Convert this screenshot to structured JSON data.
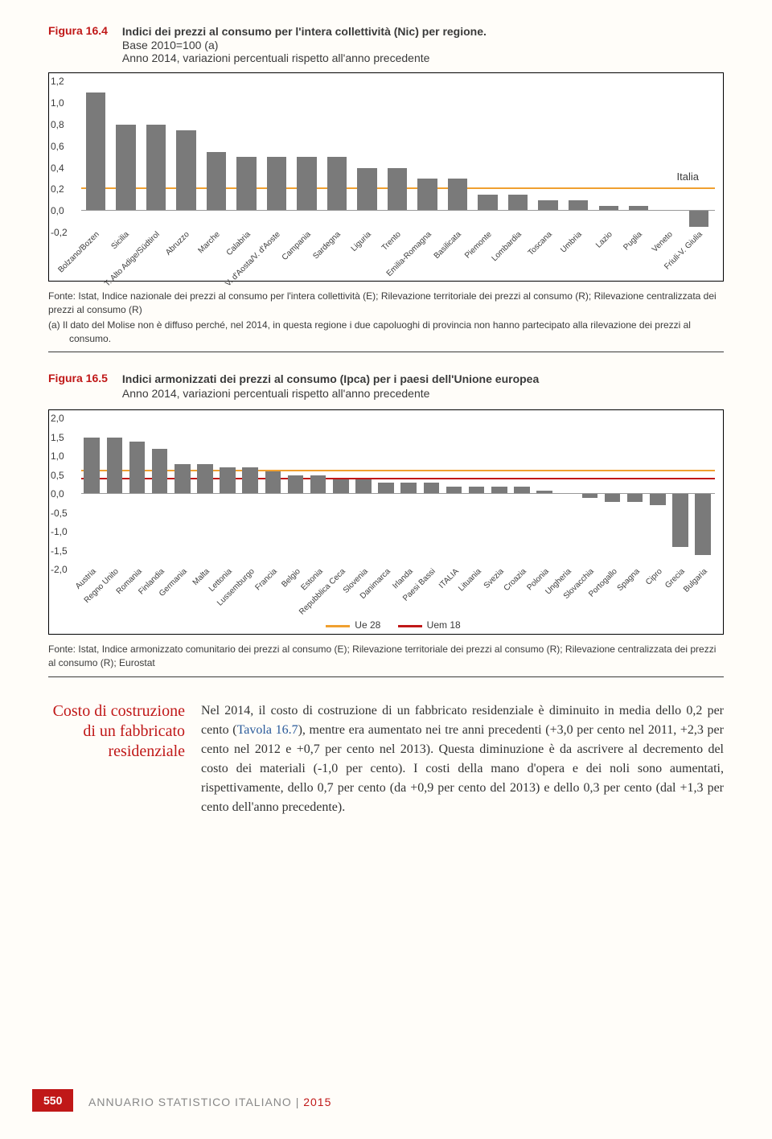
{
  "fig1": {
    "num": "Figura 16.4",
    "title": "Indici dei prezzi al consumo per l'intera collettività (Nic) per regione.",
    "sub1": "Base 2010=100 (a)",
    "sub2": "Anno 2014, variazioni percentuali rispetto all'anno precedente",
    "italia_label": "Italia",
    "ymin": -0.2,
    "ymax": 1.2,
    "ystep": 0.2,
    "yticks": [
      "1,2",
      "1,0",
      "0,8",
      "0,6",
      "0,4",
      "0,2",
      "0,0",
      "-0,2"
    ],
    "ref_value": 0.2,
    "ref_color": "#f0a030",
    "bar_color": "#7a7a7a",
    "bars": [
      {
        "label": "Bolzano/Bozen",
        "v": 1.1
      },
      {
        "label": "Sicilia",
        "v": 0.8
      },
      {
        "label": "T. Alto Adige/Südtirol",
        "v": 0.8
      },
      {
        "label": "Abruzzo",
        "v": 0.75
      },
      {
        "label": "Marche",
        "v": 0.55
      },
      {
        "label": "Calabria",
        "v": 0.5
      },
      {
        "label": "V. d'Aosta/V. d'Aoste",
        "v": 0.5
      },
      {
        "label": "Campania",
        "v": 0.5
      },
      {
        "label": "Sardegna",
        "v": 0.5
      },
      {
        "label": "Liguria",
        "v": 0.4
      },
      {
        "label": "Trento",
        "v": 0.4
      },
      {
        "label": "Emilia-Romagna",
        "v": 0.3
      },
      {
        "label": "Basilicata",
        "v": 0.3
      },
      {
        "label": "Piemonte",
        "v": 0.15
      },
      {
        "label": "Lombardia",
        "v": 0.15
      },
      {
        "label": "Toscana",
        "v": 0.1
      },
      {
        "label": "Umbria",
        "v": 0.1
      },
      {
        "label": "Lazio",
        "v": 0.05
      },
      {
        "label": "Puglia",
        "v": 0.05
      },
      {
        "label": "Veneto",
        "v": 0.0
      },
      {
        "label": "Friuli-V. Giulia",
        "v": -0.15
      }
    ],
    "source": "Fonte: Istat, Indice nazionale dei prezzi al consumo per l'intera collettività (E); Rilevazione territoriale dei prezzi al consumo (R); Rilevazione centralizzata dei prezzi al consumo (R)",
    "note": "(a) Il dato del Molise non è diffuso perché, nel 2014, in questa regione i due capoluoghi di provincia non hanno partecipato alla rilevazione dei prezzi al consumo."
  },
  "fig2": {
    "num": "Figura 16.5",
    "title": "Indici armonizzati dei prezzi al consumo (Ipca) per i paesi dell'Unione europea",
    "sub": "Anno 2014, variazioni percentuali rispetto all'anno precedente",
    "ymin": -2.0,
    "ymax": 2.0,
    "ystep": 0.5,
    "yticks": [
      "2,0",
      "1,5",
      "1,0",
      "0,5",
      "0,0",
      "-0,5",
      "-1,0",
      "-1,5",
      "-2,0"
    ],
    "ref1": {
      "value": 0.6,
      "color": "#f0a030",
      "label": "Ue 28"
    },
    "ref2": {
      "value": 0.4,
      "color": "#c01818",
      "label": "Uem 18"
    },
    "bar_color": "#7a7a7a",
    "bars": [
      {
        "label": "Austria",
        "v": 1.5
      },
      {
        "label": "Regno Unito",
        "v": 1.5
      },
      {
        "label": "Romania",
        "v": 1.4
      },
      {
        "label": "Finlandia",
        "v": 1.2
      },
      {
        "label": "Germania",
        "v": 0.8
      },
      {
        "label": "Malta",
        "v": 0.8
      },
      {
        "label": "Lettonia",
        "v": 0.7
      },
      {
        "label": "Lussemburgo",
        "v": 0.7
      },
      {
        "label": "Francia",
        "v": 0.6
      },
      {
        "label": "Belgio",
        "v": 0.5
      },
      {
        "label": "Estonia",
        "v": 0.5
      },
      {
        "label": "Repubblica Ceca",
        "v": 0.4
      },
      {
        "label": "Slovenia",
        "v": 0.4
      },
      {
        "label": "Danimarca",
        "v": 0.3
      },
      {
        "label": "Irlanda",
        "v": 0.3
      },
      {
        "label": "Paesi Bassi",
        "v": 0.3
      },
      {
        "label": "ITALIA",
        "v": 0.2
      },
      {
        "label": "Lituania",
        "v": 0.2
      },
      {
        "label": "Svezia",
        "v": 0.2
      },
      {
        "label": "Croazia",
        "v": 0.2
      },
      {
        "label": "Polonia",
        "v": 0.1
      },
      {
        "label": "Ungheria",
        "v": 0.0
      },
      {
        "label": "Slovacchia",
        "v": -0.1
      },
      {
        "label": "Portogallo",
        "v": -0.2
      },
      {
        "label": "Spagna",
        "v": -0.2
      },
      {
        "label": "Cipro",
        "v": -0.3
      },
      {
        "label": "Grecia",
        "v": -1.4
      },
      {
        "label": "Bulgaria",
        "v": -1.6
      }
    ],
    "source": "Fonte: Istat, Indice armonizzato comunitario dei prezzi al consumo (E); Rilevazione territoriale dei prezzi al consumo (R); Rilevazione centralizzata dei prezzi al consumo (R); Eurostat"
  },
  "section": {
    "heading": "Costo di costruzione di un fabbricato residenziale",
    "body_a": "Nel 2014, il costo di costruzione di un fabbricato residenziale è diminuito in media dello 0,2 per cento (",
    "link": "Tavola 16.7",
    "body_b": "), mentre era aumentato nei tre anni precedenti (+3,0 per cento nel 2011, +2,3 per cento nel 2012 e +0,7 per cento nel 2013). Questa diminuzione è da ascrivere al decremento del costo dei materiali (-1,0 per cento). I costi della mano d'opera e dei noli sono aumentati, rispettivamente, dello 0,7 per cento (da +0,9 per cento del 2013) e dello 0,3 per cento (dal +1,3 per cento dell'anno precedente)."
  },
  "footer": {
    "page": "550",
    "book": "ANNUARIO STATISTICO ITALIANO",
    "year": "2015"
  }
}
